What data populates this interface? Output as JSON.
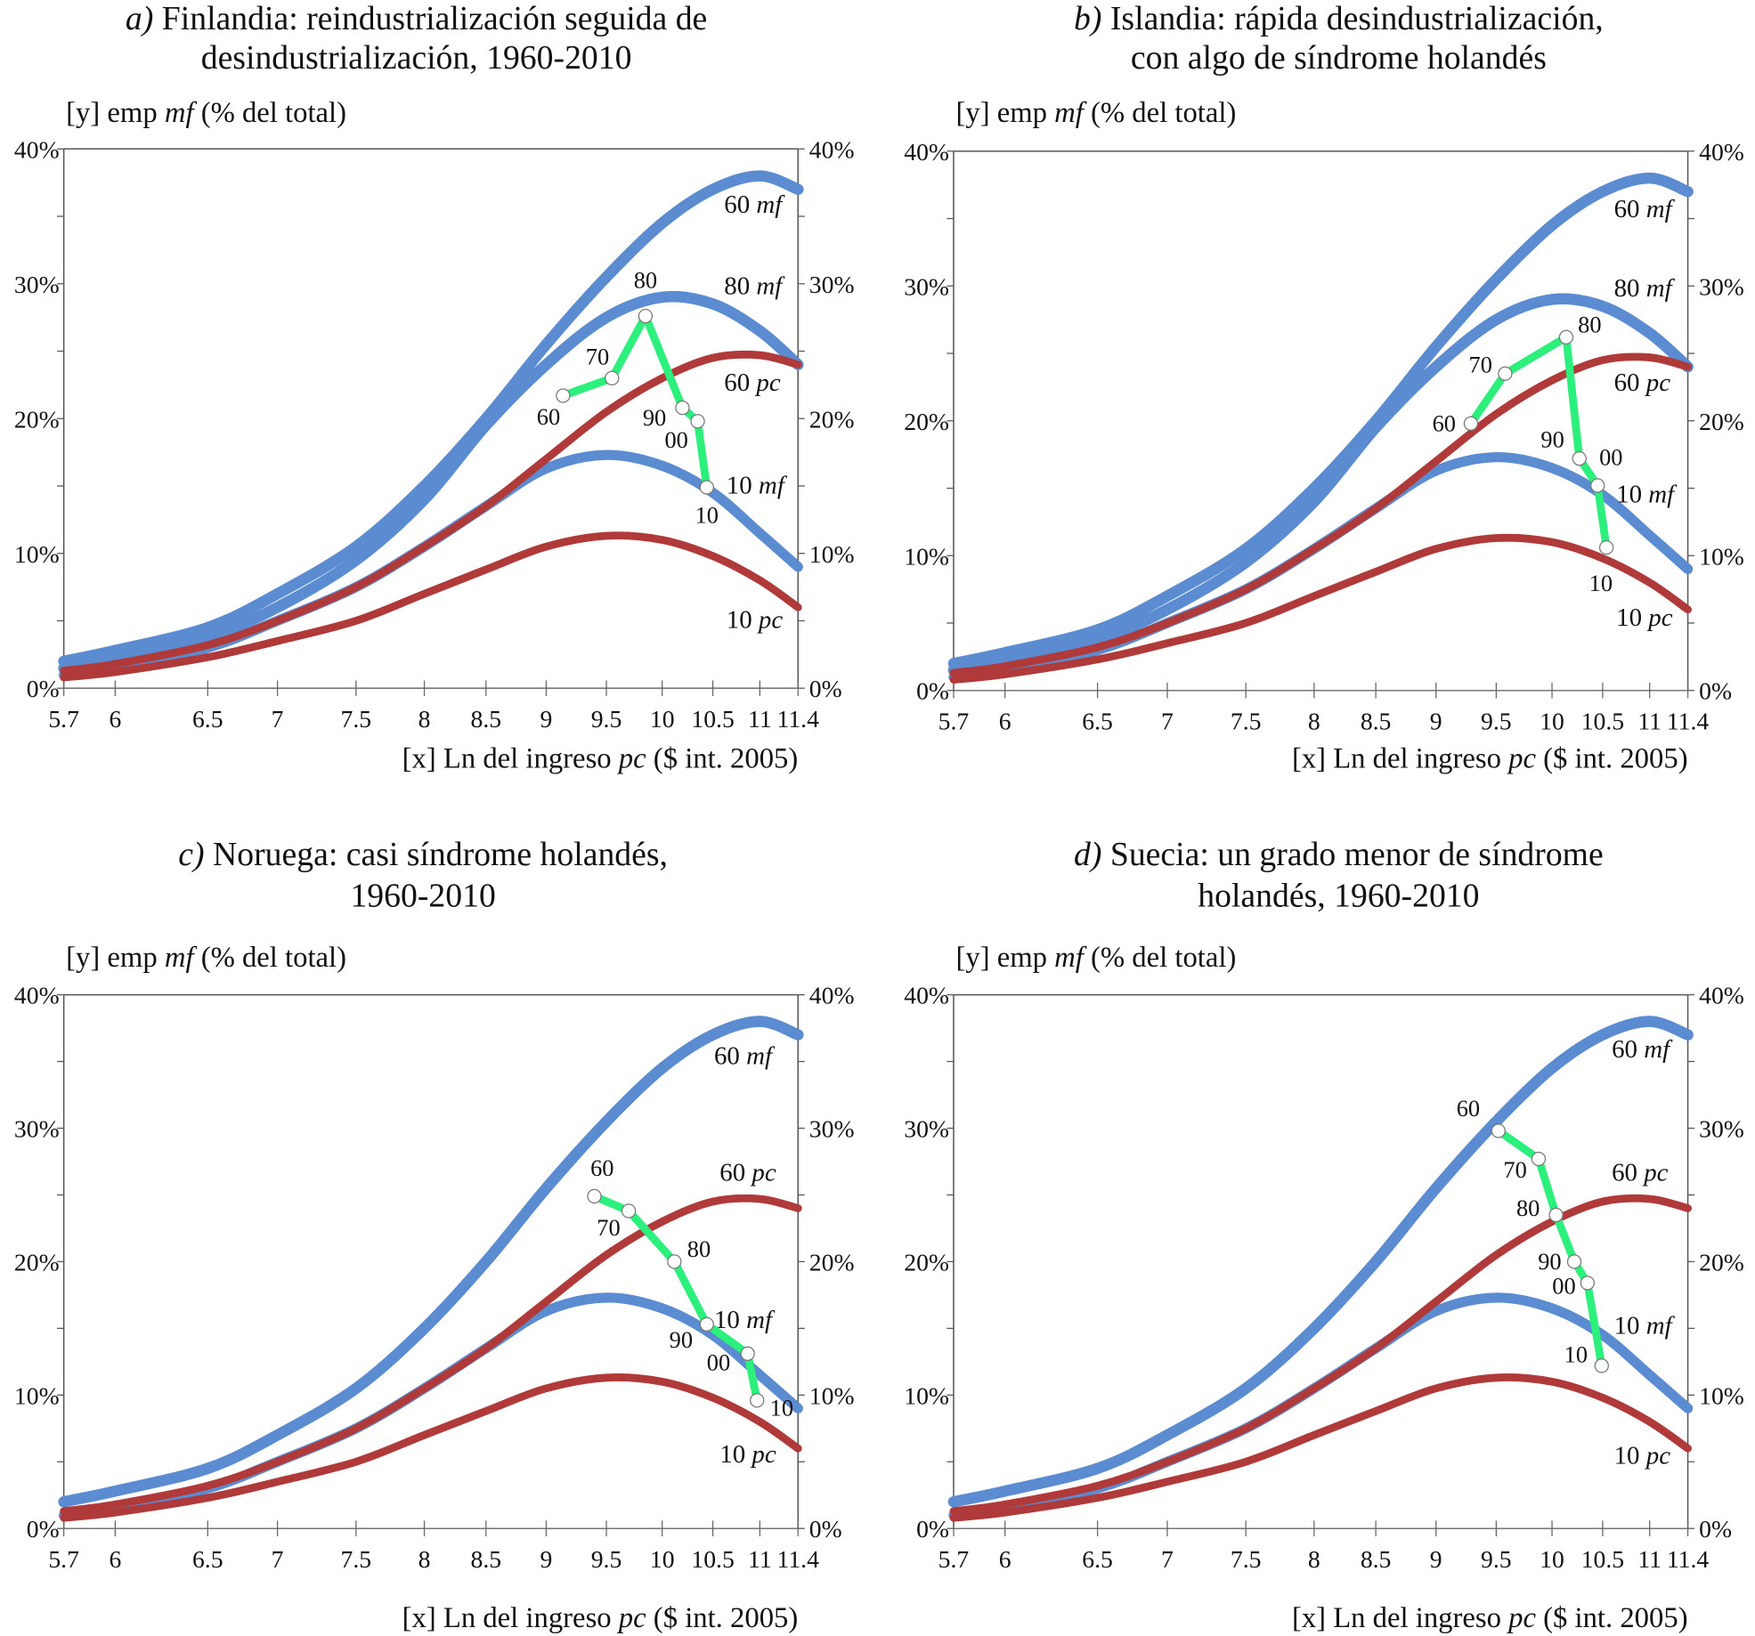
{
  "colors": {
    "mf": "#5b8bd0",
    "pc": "#b03a3a",
    "path": "#2cf07c",
    "marker": "#ffffff"
  },
  "chart_data": [
    {
      "type": "line",
      "title": {
        "prefix": "a)",
        "line1": " Finlandia: reindustrialización seguida de",
        "line2": "desindustrialización, 1960-2010"
      },
      "ylabel": {
        "a": "[y] emp ",
        "b": "mf",
        "c": " (% del total)"
      },
      "xlabel": {
        "a": "[x] Ln del ingreso ",
        "b": "pc",
        "c": " ($ int. 2005)"
      },
      "xticks": [
        "5.7",
        "6",
        "6.5",
        "7",
        "7.5",
        "8",
        "8.5",
        "9",
        "9.5",
        "10",
        "10.5",
        "11",
        "11.4"
      ],
      "yticks": [
        "0%",
        "10%",
        "20%",
        "30%",
        "40%"
      ],
      "ylim": [
        0,
        40
      ],
      "xlim": [
        5.7,
        11.4
      ],
      "curves": [
        "60 mf",
        "80 mf",
        "60 pc",
        "10 mf",
        "10 pc"
      ],
      "path": {
        "labels": [
          "60",
          "70",
          "80",
          "90",
          "00",
          "10"
        ],
        "x": [
          9.14,
          9.55,
          9.85,
          10.2,
          10.35,
          10.44
        ],
        "y": [
          21.7,
          23.0,
          27.6,
          20.8,
          19.8,
          14.9
        ]
      }
    },
    {
      "type": "line",
      "title": {
        "prefix": "b)",
        "line1": " Islandia: rápida desindustrialización,",
        "line2": "con algo de síndrome holandés"
      },
      "ylabel": {
        "a": "[y] emp ",
        "b": "mf",
        "c": " (% del total)"
      },
      "xlabel": {
        "a": "[x] Ln del ingreso ",
        "b": "pc",
        "c": " ($ int. 2005)"
      },
      "xticks": [
        "5.7",
        "6",
        "6.5",
        "7",
        "7.5",
        "8",
        "8.5",
        "9",
        "9.5",
        "10",
        "10.5",
        "11",
        "11.4"
      ],
      "yticks": [
        "0%",
        "10%",
        "20%",
        "30%",
        "40%"
      ],
      "ylim": [
        0,
        40
      ],
      "xlim": [
        5.7,
        11.4
      ],
      "curves": [
        "60 mf",
        "80 mf",
        "60 pc",
        "10 mf",
        "10 pc"
      ],
      "path": {
        "labels": [
          "60",
          "70",
          "80",
          "90",
          "00",
          "10"
        ],
        "x": [
          9.29,
          9.58,
          10.14,
          10.27,
          10.45,
          10.54
        ],
        "y": [
          19.8,
          23.5,
          26.2,
          17.2,
          15.2,
          10.6
        ]
      }
    },
    {
      "type": "line",
      "title": {
        "prefix": "c)",
        "line1": " Noruega: casi síndrome holandés,",
        "line2": "1960-2010"
      },
      "ylabel": {
        "a": "[y] emp ",
        "b": "mf",
        "c": " (% del total)"
      },
      "xlabel": {
        "a": "[x] Ln del ingreso ",
        "b": "pc",
        "c": " ($ int. 2005)"
      },
      "xticks": [
        "5.7",
        "6",
        "6.5",
        "7",
        "7.5",
        "8",
        "8.5",
        "9",
        "9.5",
        "10",
        "10.5",
        "11",
        "11.4"
      ],
      "yticks": [
        "0%",
        "10%",
        "20%",
        "30%",
        "40%"
      ],
      "ylim": [
        0,
        40
      ],
      "xlim": [
        5.7,
        11.4
      ],
      "curves": [
        "60 mf",
        "60 pc",
        "10 mf",
        "10 pc"
      ],
      "path": {
        "labels": [
          "60",
          "70",
          "80",
          "90",
          "00",
          "10"
        ],
        "x": [
          9.4,
          9.7,
          10.12,
          10.44,
          10.87,
          10.97
        ],
        "y": [
          24.9,
          23.8,
          20.0,
          15.3,
          13.1,
          9.6
        ]
      }
    },
    {
      "type": "line",
      "title": {
        "prefix": "d)",
        "line1": " Suecia: un grado menor de síndrome",
        "line2": "holandés, 1960-2010"
      },
      "ylabel": {
        "a": "[y] emp ",
        "b": "mf",
        "c": " (% del total)"
      },
      "xlabel": {
        "a": "[x] Ln del ingreso ",
        "b": "pc",
        "c": " ($ int. 2005)"
      },
      "xticks": [
        "5.7",
        "6",
        "6.5",
        "7",
        "7.5",
        "8",
        "8.5",
        "9",
        "9.5",
        "10",
        "10.5",
        "11",
        "11.4"
      ],
      "yticks": [
        "0%",
        "10%",
        "20%",
        "30%",
        "40%"
      ],
      "ylim": [
        0,
        40
      ],
      "xlim": [
        5.7,
        11.4
      ],
      "curves": [
        "60 mf",
        "60 pc",
        "10 mf",
        "10 pc"
      ],
      "path": {
        "labels": [
          "60",
          "70",
          "80",
          "90",
          "00",
          "10"
        ],
        "x": [
          9.52,
          9.88,
          10.04,
          10.22,
          10.35,
          10.49
        ],
        "y": [
          29.8,
          27.7,
          23.5,
          20.0,
          18.4,
          12.2
        ]
      }
    }
  ],
  "curve_data": {
    "x": [
      5.7,
      6,
      6.5,
      7,
      7.5,
      8,
      8.5,
      9,
      9.5,
      10,
      10.5,
      11,
      11.4
    ],
    "series": [
      {
        "name": "60 mf",
        "num": "60 ",
        "kind": "mf",
        "values": [
          2.0,
          2.8,
          4.5,
          7.0,
          10.5,
          15.0,
          20.0,
          25.5,
          30.5,
          34.5,
          37.0,
          38.0,
          37.0
        ]
      },
      {
        "name": "80 mf",
        "num": "80 ",
        "kind": "mf",
        "values": [
          1.5,
          2.3,
          3.8,
          6.0,
          9.5,
          14.0,
          19.5,
          24.0,
          27.5,
          29.0,
          28.5,
          26.5,
          24.0
        ]
      },
      {
        "name": "60 pc",
        "num": "60 ",
        "kind": "pc",
        "values": [
          1.3,
          1.8,
          3.2,
          5.0,
          7.5,
          10.5,
          13.5,
          17.0,
          20.5,
          23.0,
          24.5,
          24.7,
          24.0
        ]
      },
      {
        "name": "10 mf",
        "num": "10 ",
        "kind": "mf",
        "values": [
          1.0,
          1.5,
          3.0,
          5.0,
          7.5,
          10.5,
          13.5,
          16.3,
          17.3,
          16.5,
          14.5,
          11.5,
          9.0
        ]
      },
      {
        "name": "10 pc",
        "num": "10 ",
        "kind": "pc",
        "values": [
          0.8,
          1.2,
          2.3,
          3.5,
          5.0,
          7.0,
          8.8,
          10.5,
          11.3,
          11.0,
          9.8,
          8.0,
          6.0
        ]
      }
    ]
  }
}
